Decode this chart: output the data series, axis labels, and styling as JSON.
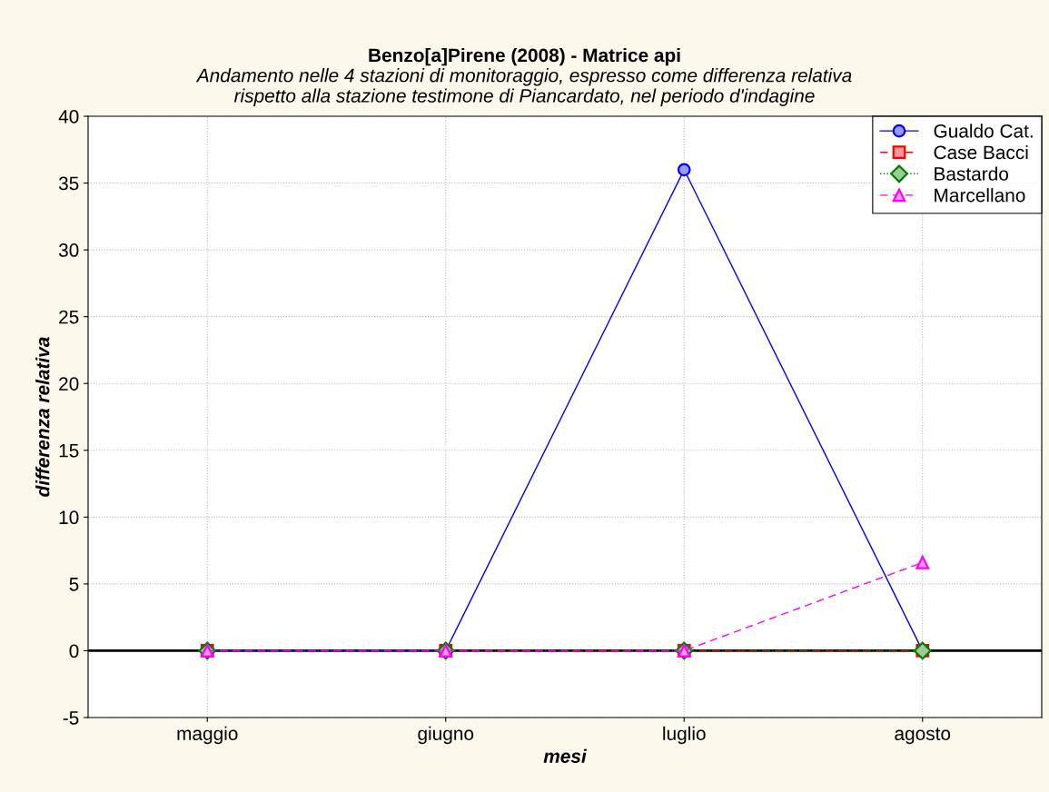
{
  "chart_data": {
    "type": "line",
    "title": "Benzo[a]Pirene (2008) - Matrice api",
    "subtitle": "Andamento nelle 4 stazioni di monitoraggio, espresso come differenza relativa\nrispetto alla stazione testimone di Piancardato, nel periodo d'indagine",
    "xlabel": "mesi",
    "ylabel": "differenza relativa",
    "categories": [
      "maggio",
      "giugno",
      "luglio",
      "agosto"
    ],
    "series": [
      {
        "name": "Gualdo Cat.",
        "color": "#0000ff",
        "values": [
          0,
          0,
          36,
          0
        ],
        "marker": "circle",
        "line_style": "solid"
      },
      {
        "name": "Case Bacci",
        "color": "#ff0000",
        "values": [
          0,
          0,
          0,
          0
        ],
        "marker": "square",
        "line_style": "dashed"
      },
      {
        "name": "Bastardo",
        "color": "#008000",
        "values": [
          0,
          0,
          0,
          0
        ],
        "marker": "diamond",
        "line_style": "dotted"
      },
      {
        "name": "Marcellano",
        "color": "#ff00ff",
        "values": [
          0,
          0,
          0,
          6.6
        ],
        "marker": "triangle",
        "line_style": "dashed"
      }
    ],
    "ylim": [
      -5,
      40
    ],
    "yticks": [
      -5,
      0,
      5,
      10,
      15,
      20,
      25,
      30,
      35,
      40
    ],
    "grid": true,
    "legend": "top right",
    "ref_lines": [
      {
        "axis": "y",
        "value": 0,
        "color": "#000000",
        "line_style": "solid"
      }
    ]
  }
}
